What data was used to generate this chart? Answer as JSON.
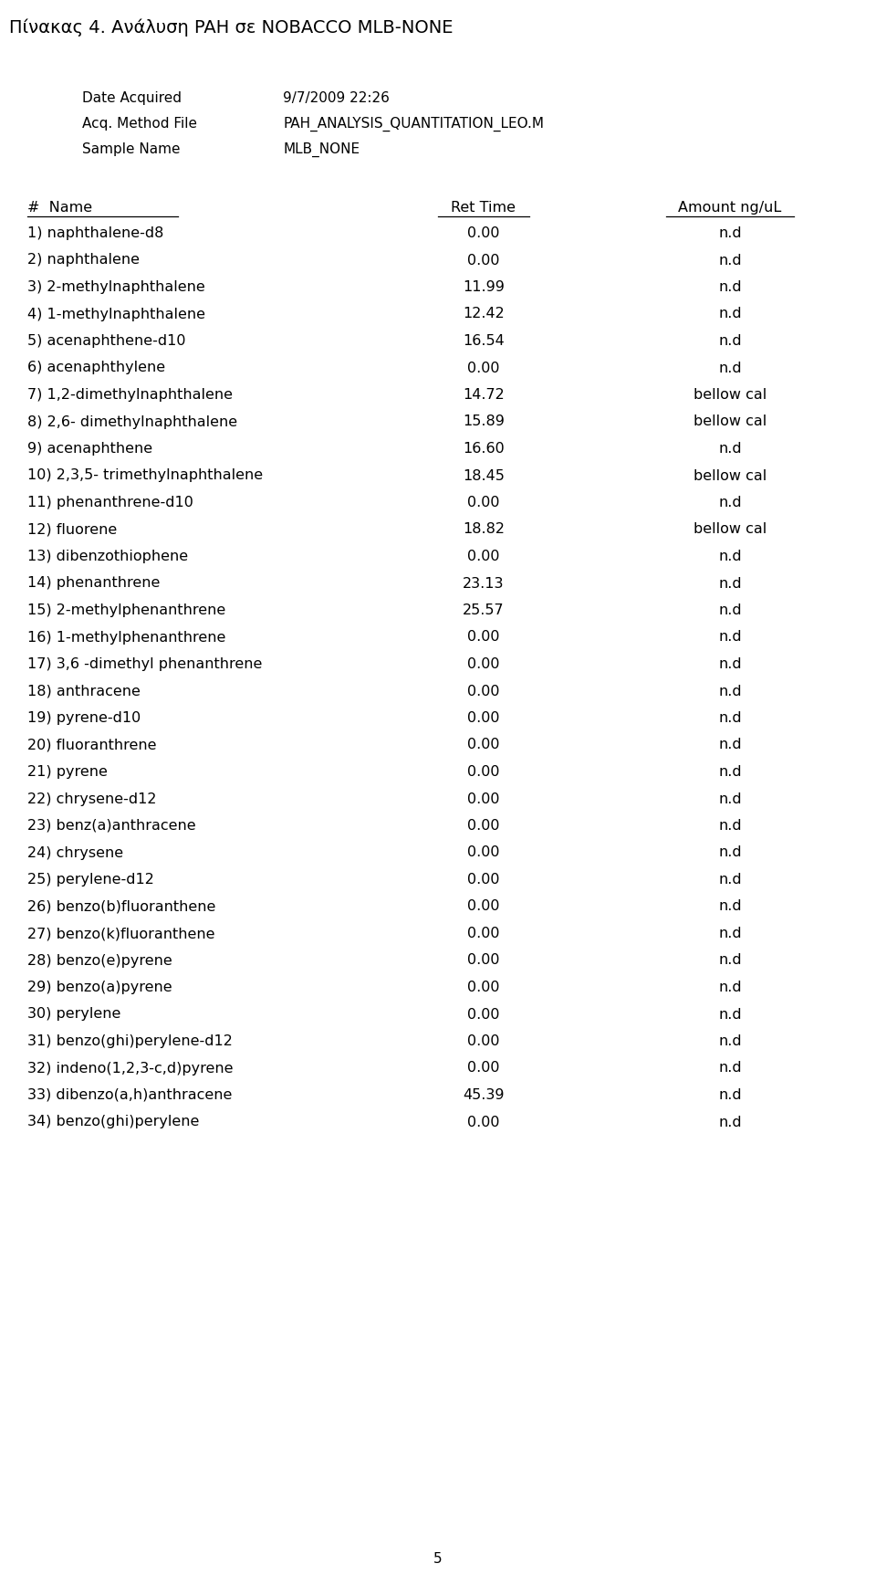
{
  "title": "Πίνακας 4. Ανάλυση PAH σε NOBACCO MLB-NONE",
  "meta_labels": [
    "Date Acquired",
    "Acq. Method File",
    "Sample Name"
  ],
  "meta_values": [
    "9/7/2009 22:26",
    "PAH_ANALYSIS_QUANTITATION_LEO.M",
    "MLB_NONE"
  ],
  "col_headers": [
    "#  Name",
    "Ret Time",
    "Amount ng/uL"
  ],
  "rows": [
    [
      "1) naphthalene-d8",
      "0.00",
      "n.d"
    ],
    [
      "2) naphthalene",
      "0.00",
      "n.d"
    ],
    [
      "3) 2-methylnaphthalene",
      "11.99",
      "n.d"
    ],
    [
      "4) 1-methylnaphthalene",
      "12.42",
      "n.d"
    ],
    [
      "5) acenaphthene-d10",
      "16.54",
      "n.d"
    ],
    [
      "6) acenaphthylene",
      "0.00",
      "n.d"
    ],
    [
      "7) 1,2-dimethylnaphthalene",
      "14.72",
      "bellow cal"
    ],
    [
      "8) 2,6- dimethylnaphthalene",
      "15.89",
      "bellow cal"
    ],
    [
      "9) acenaphthene",
      "16.60",
      "n.d"
    ],
    [
      "10) 2,3,5- trimethylnaphthalene",
      "18.45",
      "bellow cal"
    ],
    [
      "11) phenanthrene-d10",
      "0.00",
      "n.d"
    ],
    [
      "12) fluorene",
      "18.82",
      "bellow cal"
    ],
    [
      "13) dibenzothiophene",
      "0.00",
      "n.d"
    ],
    [
      "14) phenanthrene",
      "23.13",
      "n.d"
    ],
    [
      "15) 2-methylphenanthrene",
      "25.57",
      "n.d"
    ],
    [
      "16) 1-methylphenanthrene",
      "0.00",
      "n.d"
    ],
    [
      "17) 3,6 -dimethyl phenanthrene",
      "0.00",
      "n.d"
    ],
    [
      "18) anthracene",
      "0.00",
      "n.d"
    ],
    [
      "19) pyrene-d10",
      "0.00",
      "n.d"
    ],
    [
      "20) fluoranthrene",
      "0.00",
      "n.d"
    ],
    [
      "21) pyrene",
      "0.00",
      "n.d"
    ],
    [
      "22) chrysene-d12",
      "0.00",
      "n.d"
    ],
    [
      "23) benz(a)anthracene",
      "0.00",
      "n.d"
    ],
    [
      "24) chrysene",
      "0.00",
      "n.d"
    ],
    [
      "25) perylene-d12",
      "0.00",
      "n.d"
    ],
    [
      "26) benzo(b)fluoranthene",
      "0.00",
      "n.d"
    ],
    [
      "27) benzo(k)fluoranthene",
      "0.00",
      "n.d"
    ],
    [
      "28) benzo(e)pyrene",
      "0.00",
      "n.d"
    ],
    [
      "29) benzo(a)pyrene",
      "0.00",
      "n.d"
    ],
    [
      "30) perylene",
      "0.00",
      "n.d"
    ],
    [
      "31) benzo(ghi)perylene-d12",
      "0.00",
      "n.d"
    ],
    [
      "32) indeno(1,2,3-c,d)pyrene",
      "0.00",
      "n.d"
    ],
    [
      "33) dibenzo(a,h)anthracene",
      "45.39",
      "n.d"
    ],
    [
      "34) benzo(ghi)perylene",
      "0.00",
      "n.d"
    ]
  ],
  "page_number": "5",
  "bg_color": "#ffffff",
  "text_color": "#000000",
  "title_fontsize": 14,
  "meta_fontsize": 11,
  "header_fontsize": 11.5,
  "row_fontsize": 11.5
}
